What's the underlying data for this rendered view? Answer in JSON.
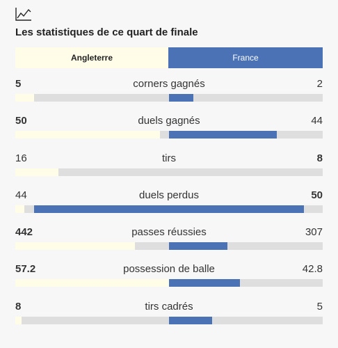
{
  "header": {
    "icon": "line-chart-icon",
    "title": "Les statistiques de ce quart de finale"
  },
  "teams": {
    "left": "Angleterre",
    "right": "France"
  },
  "colors": {
    "left": "#fffde8",
    "right": "#4a72b5",
    "track": "#dedede"
  },
  "stats": [
    {
      "label": "corners gagnés",
      "left": "5",
      "right": "2",
      "left_fill": 0.06,
      "right_fill": 0.58,
      "bold": "left"
    },
    {
      "label": "duels gagnés",
      "left": "50",
      "right": "44",
      "left_fill": 0.47,
      "right_fill": 0.85,
      "bold": "left"
    },
    {
      "label": "tirs",
      "left": "16",
      "right": "8",
      "left_fill": 0.14,
      "right_fill": 0.5,
      "bold": "right"
    },
    {
      "label": "duels perdus",
      "left": "44",
      "right": "50",
      "left_fill": 0.03,
      "right_fill": 0.94,
      "bold": "right"
    },
    {
      "label": "passes réussies",
      "left": "442",
      "right": "307",
      "left_fill": 0.39,
      "right_fill": 0.69,
      "bold": "left"
    },
    {
      "label": "possession de balle",
      "left": "57.2",
      "right": "42.8",
      "left_fill": 0.5,
      "right_fill": 0.73,
      "bold": "left"
    },
    {
      "label": "tirs cadrés",
      "left": "8",
      "right": "5",
      "left_fill": 0.02,
      "right_fill": 0.64,
      "bold": "left"
    }
  ]
}
